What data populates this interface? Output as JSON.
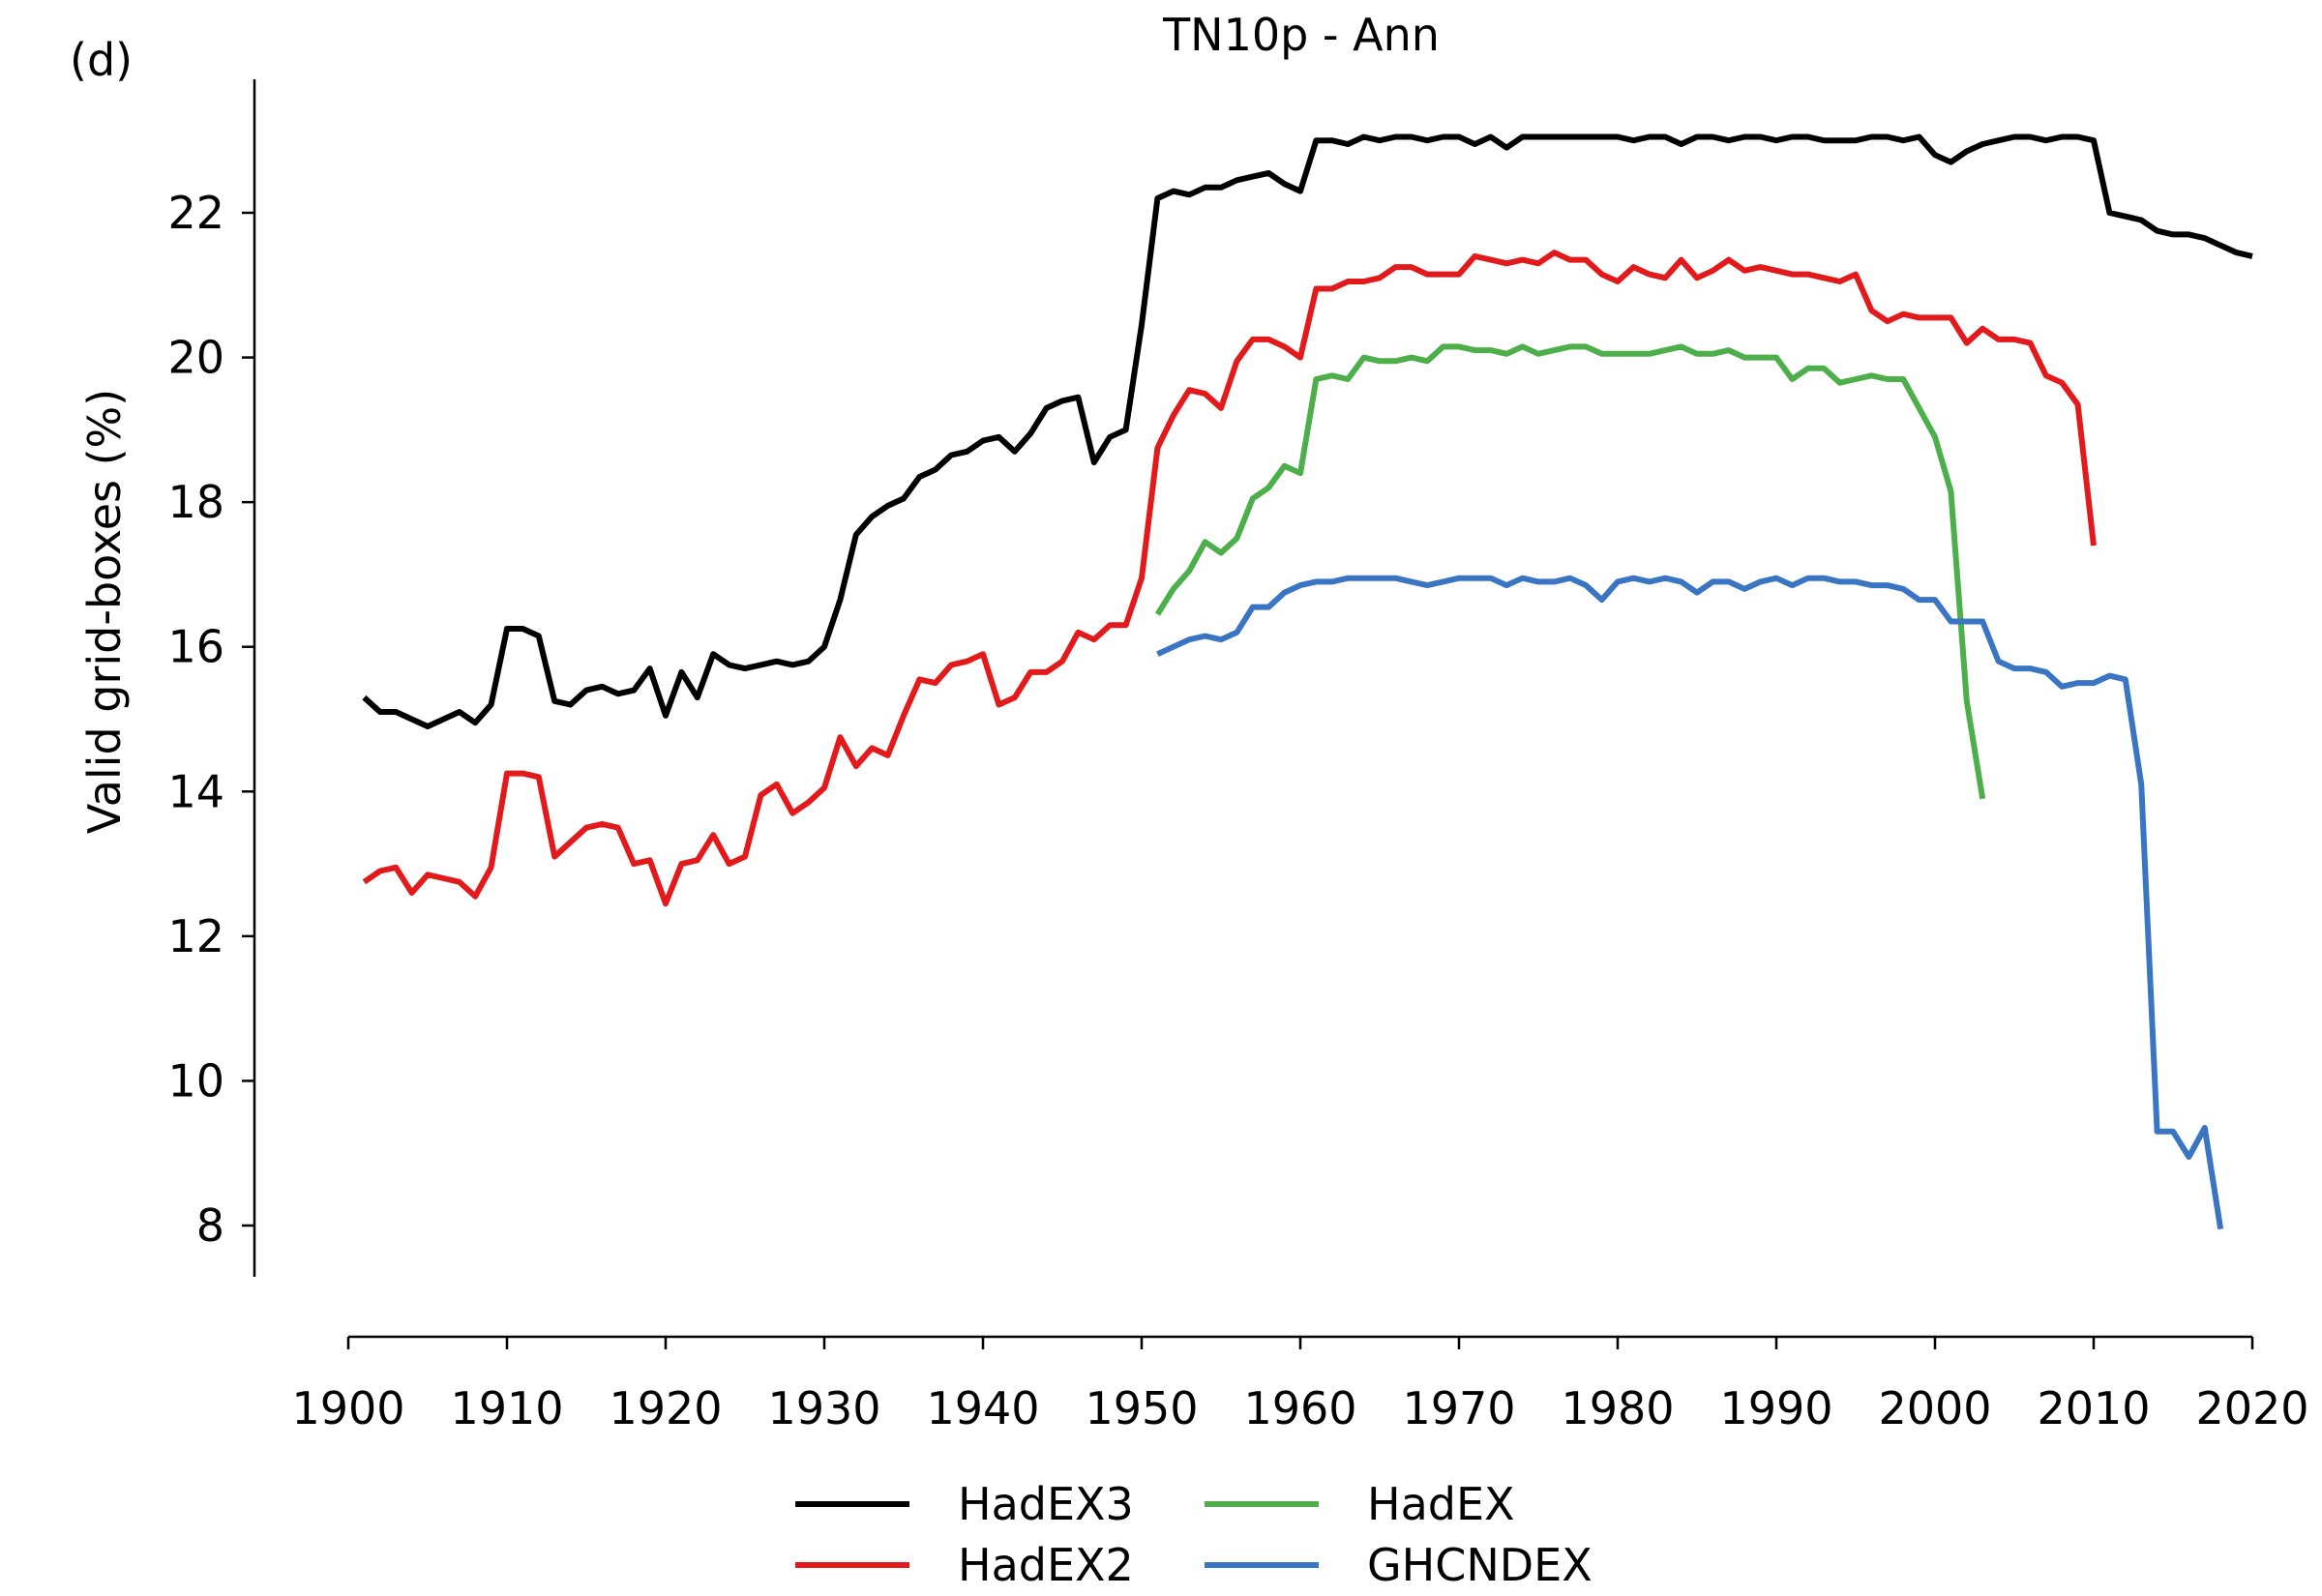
{
  "chart_data": {
    "type": "line",
    "panel_label": "(d)",
    "title": "TN10p - Ann",
    "xlabel": "",
    "ylabel": "Valid grid-boxes (%)",
    "xlim": [
      1900,
      2020
    ],
    "ylim": [
      7.3,
      23.9
    ],
    "x_ticks": [
      1900,
      1910,
      1920,
      1930,
      1940,
      1950,
      1960,
      1970,
      1980,
      1990,
      2000,
      2010,
      2020
    ],
    "y_ticks": [
      8,
      10,
      12,
      14,
      16,
      18,
      20,
      22
    ],
    "grid": false,
    "legend_position": "bottom-center",
    "series": [
      {
        "name": "HadEX3",
        "color": "#000000",
        "x_start": 1901,
        "values": [
          15.3,
          15.1,
          15.1,
          15.0,
          14.9,
          15.0,
          15.1,
          14.95,
          15.2,
          16.25,
          16.25,
          16.15,
          15.25,
          15.2,
          15.4,
          15.45,
          15.35,
          15.4,
          15.7,
          15.05,
          15.65,
          15.3,
          15.9,
          15.75,
          15.7,
          15.75,
          15.8,
          15.75,
          15.8,
          16.0,
          16.65,
          17.55,
          17.8,
          17.95,
          18.05,
          18.35,
          18.45,
          18.65,
          18.7,
          18.85,
          18.9,
          18.7,
          18.95,
          19.3,
          19.4,
          19.45,
          18.55,
          18.9,
          19.0,
          20.45,
          22.2,
          22.3,
          22.25,
          22.35,
          22.35,
          22.45,
          22.5,
          22.55,
          22.4,
          22.3,
          23.0,
          23.0,
          22.95,
          23.05,
          23.0,
          23.05,
          23.05,
          23.0,
          23.05,
          23.05,
          22.95,
          23.05,
          22.9,
          23.05,
          23.05,
          23.05,
          23.05,
          23.05,
          23.05,
          23.05,
          23.0,
          23.05,
          23.05,
          22.95,
          23.05,
          23.05,
          23.0,
          23.05,
          23.05,
          23.0,
          23.05,
          23.05,
          23.0,
          23.0,
          23.0,
          23.05,
          23.05,
          23.0,
          23.05,
          22.8,
          22.7,
          22.85,
          22.95,
          23.0,
          23.05,
          23.05,
          23.0,
          23.05,
          23.05,
          23.0,
          22.0,
          21.95,
          21.9,
          21.75,
          21.7,
          21.7,
          21.65,
          21.55,
          21.45,
          21.4
        ]
      },
      {
        "name": "HadEX2",
        "color": "#e31a1c",
        "x_start": 1901,
        "values": [
          12.75,
          12.9,
          12.95,
          12.6,
          12.85,
          12.8,
          12.75,
          12.55,
          12.95,
          14.25,
          14.25,
          14.2,
          13.1,
          13.3,
          13.5,
          13.55,
          13.5,
          13.0,
          13.05,
          12.45,
          13.0,
          13.05,
          13.4,
          13.0,
          13.1,
          13.95,
          14.1,
          13.7,
          13.85,
          14.05,
          14.75,
          14.35,
          14.6,
          14.5,
          15.05,
          15.55,
          15.5,
          15.75,
          15.8,
          15.9,
          15.2,
          15.3,
          15.65,
          15.65,
          15.8,
          16.2,
          16.1,
          16.3,
          16.3,
          16.95,
          18.75,
          19.2,
          19.55,
          19.5,
          19.3,
          19.95,
          20.25,
          20.25,
          20.15,
          20.0,
          20.95,
          20.95,
          21.05,
          21.05,
          21.1,
          21.25,
          21.25,
          21.15,
          21.15,
          21.15,
          21.4,
          21.35,
          21.3,
          21.35,
          21.3,
          21.45,
          21.35,
          21.35,
          21.15,
          21.05,
          21.25,
          21.15,
          21.1,
          21.35,
          21.1,
          21.2,
          21.35,
          21.2,
          21.25,
          21.2,
          21.15,
          21.15,
          21.1,
          21.05,
          21.15,
          20.65,
          20.5,
          20.6,
          20.55,
          20.55,
          20.55,
          20.2,
          20.4,
          20.25,
          20.25,
          20.2,
          19.75,
          19.65,
          19.35,
          17.4
        ]
      },
      {
        "name": "HadEX",
        "color": "#4daf4a",
        "x_start": 1951,
        "values": [
          16.45,
          16.8,
          17.05,
          17.45,
          17.3,
          17.5,
          18.05,
          18.2,
          18.5,
          18.4,
          19.7,
          19.75,
          19.7,
          20.0,
          19.95,
          19.95,
          20.0,
          19.95,
          20.15,
          20.15,
          20.1,
          20.1,
          20.05,
          20.15,
          20.05,
          20.1,
          20.15,
          20.15,
          20.05,
          20.05,
          20.05,
          20.05,
          20.1,
          20.15,
          20.05,
          20.05,
          20.1,
          20.0,
          20.0,
          20.0,
          19.7,
          19.85,
          19.85,
          19.65,
          19.7,
          19.75,
          19.7,
          19.7,
          19.3,
          18.9,
          18.15,
          15.25,
          13.9
        ]
      },
      {
        "name": "GHCNDEX",
        "color": "#3a75c4",
        "x_start": 1951,
        "values": [
          15.9,
          16.0,
          16.1,
          16.15,
          16.1,
          16.2,
          16.55,
          16.55,
          16.75,
          16.85,
          16.9,
          16.9,
          16.95,
          16.95,
          16.95,
          16.95,
          16.9,
          16.85,
          16.9,
          16.95,
          16.95,
          16.95,
          16.85,
          16.95,
          16.9,
          16.9,
          16.95,
          16.85,
          16.65,
          16.9,
          16.95,
          16.9,
          16.95,
          16.9,
          16.75,
          16.9,
          16.9,
          16.8,
          16.9,
          16.95,
          16.85,
          16.95,
          16.95,
          16.9,
          16.9,
          16.85,
          16.85,
          16.8,
          16.65,
          16.65,
          16.35,
          16.35,
          16.35,
          15.8,
          15.7,
          15.7,
          15.65,
          15.45,
          15.5,
          15.5,
          15.6,
          15.55,
          14.1,
          9.3,
          9.3,
          8.95,
          9.35,
          7.95
        ]
      }
    ]
  }
}
